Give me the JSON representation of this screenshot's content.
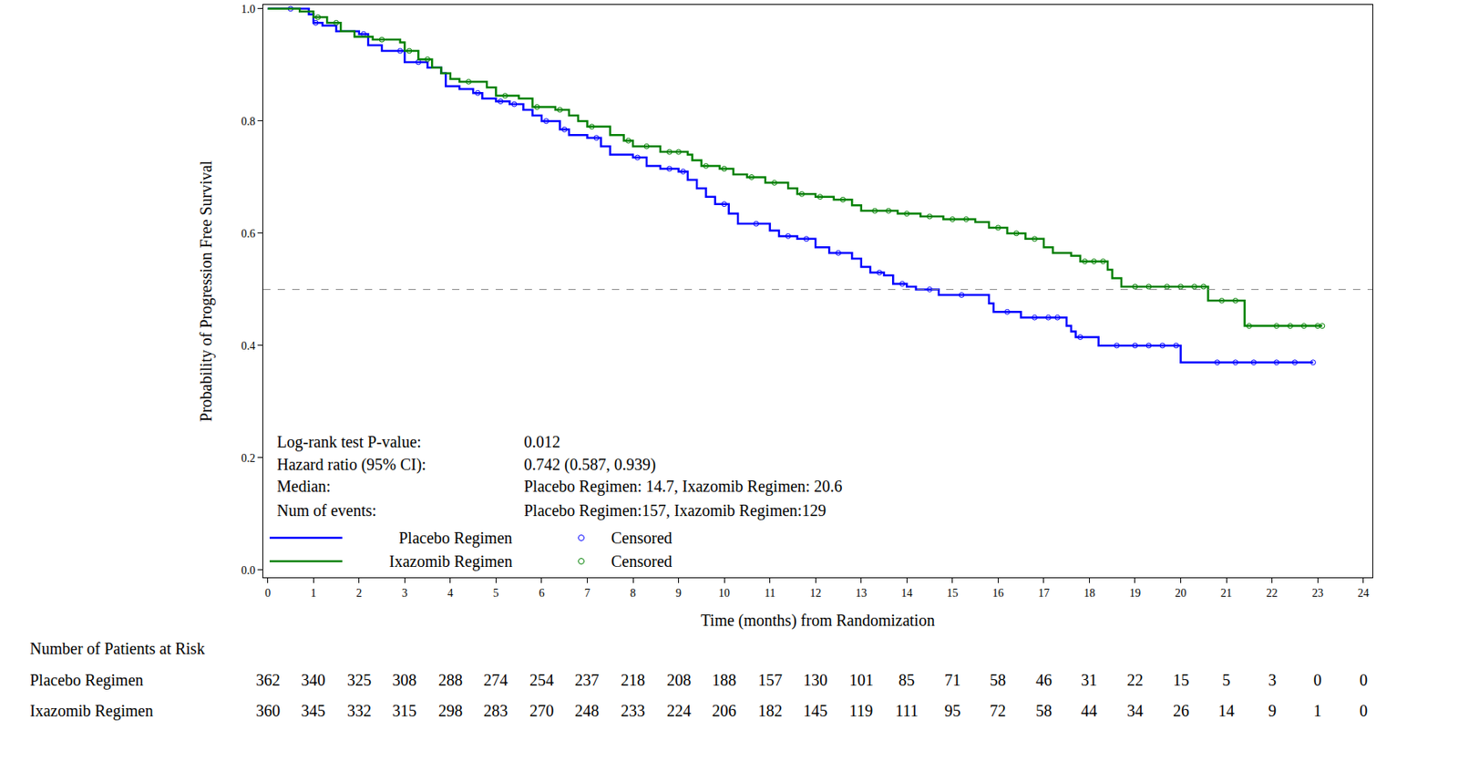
{
  "chart_data": {
    "type": "line",
    "x_label": "Time (months) from Randomization",
    "y_label": "Probability of Progression Free Survival",
    "xlim": [
      -0.1,
      24.2
    ],
    "xticks": [
      0,
      1,
      2,
      3,
      4,
      5,
      6,
      7,
      8,
      9,
      10,
      11,
      12,
      13,
      14,
      15,
      16,
      17,
      18,
      19,
      20,
      21,
      22,
      23,
      24
    ],
    "ylim": [
      -0.013,
      1.007
    ],
    "yticks": [
      {
        "value": 0,
        "label": "0.0"
      },
      {
        "value": 0.2,
        "label": "0.2"
      },
      {
        "value": 0.4,
        "label": "0.4"
      },
      {
        "value": 0.6,
        "label": "0.6"
      },
      {
        "value": 0.8,
        "label": "0.8"
      },
      {
        "value": 1,
        "label": "1.0"
      }
    ],
    "grid": false,
    "legend": "lower left",
    "reference_line": 0.5,
    "series": [
      {
        "name": "Placebo Regimen",
        "color": "#0000ff",
        "line_style": "step",
        "marker": "circle-open",
        "censored_name": "Censored",
        "x": [
          0,
          0.9,
          1.0,
          1.2,
          1.5,
          2.0,
          2.2,
          2.5,
          3.0,
          3.5,
          3.8,
          3.9,
          4.2,
          4.5,
          4.7,
          5.0,
          5.3,
          5.6,
          5.8,
          6.0,
          6.4,
          6.6,
          7.0,
          7.3,
          7.5,
          8.0,
          8.3,
          8.6,
          9.0,
          9.2,
          9.4,
          9.6,
          9.8,
          10.1,
          10.3,
          11.0,
          11.2,
          11.6,
          12.0,
          12.3,
          12.8,
          13.0,
          13.2,
          13.5,
          13.7,
          14.0,
          14.2,
          14.7,
          15.8,
          15.9,
          16.5,
          17.5,
          17.6,
          17.7,
          18.2,
          20.0,
          22.9
        ],
        "values": [
          1.0,
          0.99,
          0.975,
          0.97,
          0.96,
          0.955,
          0.935,
          0.925,
          0.905,
          0.895,
          0.885,
          0.862,
          0.857,
          0.85,
          0.84,
          0.835,
          0.83,
          0.82,
          0.81,
          0.8,
          0.785,
          0.775,
          0.77,
          0.755,
          0.74,
          0.735,
          0.72,
          0.715,
          0.71,
          0.695,
          0.68,
          0.665,
          0.652,
          0.635,
          0.617,
          0.605,
          0.595,
          0.59,
          0.575,
          0.565,
          0.555,
          0.54,
          0.53,
          0.525,
          0.51,
          0.505,
          0.5,
          0.49,
          0.475,
          0.46,
          0.45,
          0.435,
          0.425,
          0.415,
          0.4,
          0.37,
          0.37
        ],
        "censored_x": [
          0.5,
          1.05,
          2.1,
          2.9,
          3.3,
          4.6,
          5.1,
          5.4,
          6.1,
          6.5,
          7.2,
          8.1,
          8.8,
          9.1,
          10.0,
          10.7,
          11.4,
          11.8,
          12.5,
          13.4,
          13.9,
          14.5,
          15.2,
          16.2,
          16.8,
          17.1,
          17.3,
          17.8,
          18.6,
          19.0,
          19.3,
          19.6,
          19.9,
          20.8,
          21.2,
          21.6,
          22.1,
          22.5,
          22.9
        ],
        "censored_y": [
          1.0,
          0.975,
          0.955,
          0.925,
          0.905,
          0.85,
          0.835,
          0.83,
          0.8,
          0.785,
          0.77,
          0.735,
          0.715,
          0.71,
          0.652,
          0.617,
          0.595,
          0.59,
          0.565,
          0.53,
          0.51,
          0.5,
          0.49,
          0.46,
          0.45,
          0.45,
          0.45,
          0.415,
          0.4,
          0.4,
          0.4,
          0.4,
          0.4,
          0.37,
          0.37,
          0.37,
          0.37,
          0.37,
          0.37
        ]
      },
      {
        "name": "Ixazomib Regimen",
        "color": "#008000",
        "line_style": "step",
        "marker": "circle-open",
        "censored_name": "Censored",
        "x": [
          0,
          0.7,
          1.0,
          1.3,
          1.6,
          1.9,
          2.3,
          2.9,
          3.0,
          3.3,
          3.6,
          3.8,
          4.0,
          4.2,
          4.8,
          5.0,
          5.5,
          5.8,
          6.3,
          6.6,
          6.8,
          7.0,
          7.5,
          7.8,
          8.0,
          8.6,
          9.2,
          9.3,
          9.5,
          9.9,
          10.2,
          10.5,
          10.9,
          11.4,
          11.6,
          12.0,
          12.4,
          12.8,
          13.0,
          13.8,
          14.3,
          14.8,
          15.5,
          15.8,
          16.2,
          16.6,
          17.0,
          17.2,
          17.6,
          17.8,
          18.4,
          18.5,
          18.7,
          20.6,
          21.4,
          23.1
        ],
        "values": [
          1.0,
          0.995,
          0.985,
          0.975,
          0.96,
          0.95,
          0.945,
          0.94,
          0.925,
          0.91,
          0.895,
          0.885,
          0.875,
          0.87,
          0.86,
          0.845,
          0.84,
          0.825,
          0.82,
          0.81,
          0.8,
          0.79,
          0.775,
          0.765,
          0.755,
          0.745,
          0.74,
          0.73,
          0.72,
          0.715,
          0.705,
          0.7,
          0.69,
          0.68,
          0.67,
          0.665,
          0.66,
          0.65,
          0.64,
          0.635,
          0.63,
          0.625,
          0.62,
          0.61,
          0.6,
          0.59,
          0.575,
          0.565,
          0.56,
          0.55,
          0.535,
          0.52,
          0.505,
          0.48,
          0.435,
          0.435
        ],
        "censored_x": [
          1.1,
          1.5,
          2.5,
          3.1,
          3.5,
          4.4,
          5.2,
          5.9,
          6.4,
          7.1,
          7.9,
          8.3,
          8.8,
          9.0,
          9.6,
          10.0,
          10.6,
          11.1,
          11.7,
          12.1,
          12.6,
          13.3,
          13.6,
          14.0,
          14.5,
          15.0,
          15.3,
          16.0,
          16.4,
          16.8,
          17.9,
          18.1,
          18.3,
          19.0,
          19.3,
          19.7,
          20.0,
          20.3,
          20.5,
          20.9,
          21.2,
          21.5,
          22.1,
          22.4,
          22.7,
          23.0,
          23.1
        ],
        "censored_y": [
          0.985,
          0.975,
          0.945,
          0.925,
          0.91,
          0.87,
          0.845,
          0.825,
          0.82,
          0.79,
          0.765,
          0.755,
          0.745,
          0.745,
          0.72,
          0.715,
          0.7,
          0.69,
          0.67,
          0.665,
          0.66,
          0.64,
          0.64,
          0.635,
          0.63,
          0.625,
          0.625,
          0.61,
          0.6,
          0.59,
          0.55,
          0.55,
          0.55,
          0.505,
          0.505,
          0.505,
          0.505,
          0.505,
          0.505,
          0.48,
          0.48,
          0.435,
          0.435,
          0.435,
          0.435,
          0.435,
          0.435
        ]
      }
    ],
    "stats": [
      {
        "label": "Log-rank test P-value:",
        "value": "0.012"
      },
      {
        "label": "Hazard ratio (95% CI):",
        "value": "0.742 (0.587, 0.939)"
      },
      {
        "label": "Median:",
        "value": "Placebo Regimen: 14.7, Ixazomib Regimen: 20.6"
      },
      {
        "label": "Num of events:",
        "value": "Placebo Regimen:157, Ixazomib Regimen:129"
      }
    ],
    "risk_table": {
      "title": "Number of Patients at Risk",
      "times": [
        0,
        1,
        2,
        3,
        4,
        5,
        6,
        7,
        8,
        9,
        10,
        11,
        12,
        13,
        14,
        15,
        16,
        17,
        18,
        19,
        20,
        21,
        22,
        23,
        24
      ],
      "rows": [
        {
          "name": "Placebo Regimen",
          "values": [
            362,
            340,
            325,
            308,
            288,
            274,
            254,
            237,
            218,
            208,
            188,
            157,
            130,
            101,
            85,
            71,
            58,
            46,
            31,
            22,
            15,
            5,
            3,
            0,
            0
          ]
        },
        {
          "name": "Ixazomib Regimen",
          "values": [
            360,
            345,
            332,
            315,
            298,
            283,
            270,
            248,
            233,
            224,
            206,
            182,
            145,
            119,
            111,
            95,
            72,
            58,
            44,
            34,
            26,
            14,
            9,
            1,
            0
          ]
        }
      ]
    }
  }
}
